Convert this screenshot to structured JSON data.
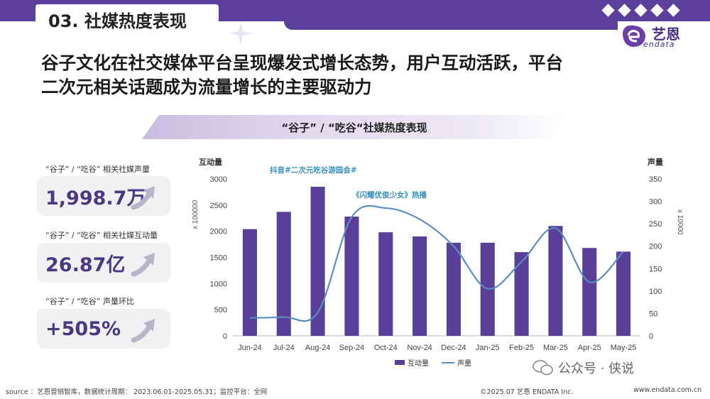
{
  "header": {
    "section_title": "03. 社媒热度表现",
    "headline_line1": "谷子文化在社交媒体平台呈现爆发式增长态势，用户互动活跃，平台",
    "headline_line2": "二次元相关话题成为流量增长的主要驱动力",
    "subtitle": "“谷子” / “吃谷“社媒热度表现"
  },
  "logo": {
    "name": "艺恩",
    "sub": "endata"
  },
  "kpis": [
    {
      "label": "“谷子” / “吃谷” 相关社媒声量",
      "value": "1,998.7万"
    },
    {
      "label": "“谷子” / “吃谷” 相关社媒互动量",
      "value": "26.87亿"
    },
    {
      "label": "“谷子” / “吃谷” 声量环比",
      "value": "+505%"
    }
  ],
  "chart_data": {
    "type": "bar+line",
    "categories": [
      "Jun-24",
      "Jul-24",
      "Aug-24",
      "Sep-24",
      "Oct-24",
      "Nov-24",
      "Dec-24",
      "Jan-25",
      "Feb-25",
      "Mar-25",
      "Apr-25",
      "May-25"
    ],
    "series": [
      {
        "name": "互动量",
        "type": "bar",
        "axis": "left",
        "values": [
          2040,
          2370,
          2850,
          2280,
          1980,
          1900,
          1780,
          1780,
          1600,
          2100,
          1680,
          1610
        ]
      },
      {
        "name": "声量",
        "type": "line",
        "axis": "right",
        "values": [
          40,
          42,
          52,
          265,
          285,
          260,
          200,
          105,
          165,
          240,
          120,
          188
        ]
      }
    ],
    "left_axis": {
      "title": "互动量",
      "unit": "x 100000",
      "range": [
        0,
        3000
      ],
      "ticks": [
        0,
        500,
        1000,
        1500,
        2000,
        2500,
        3000
      ]
    },
    "right_axis": {
      "title": "声量",
      "unit": "x 10000",
      "range": [
        0,
        350
      ],
      "ticks": [
        0,
        50,
        100,
        150,
        200,
        250,
        300,
        350
      ]
    },
    "annotations": [
      {
        "text": "抖音#二次元吃谷游园会#",
        "near": "Sep-24"
      },
      {
        "text": "《闪耀优俊少女》热播",
        "near": "Oct-24"
      }
    ],
    "legend_position": "bottom",
    "colors": {
      "bar": "#5a3f99",
      "line": "#5b8cc2"
    }
  },
  "footer": {
    "source": "source ：艺恩营销智库，数据统计周期： 2023.06.01-2025.05.31；监控平台：全网",
    "copyright": "©2025.07  艺恩 ENDATA Inc.",
    "website": "www.endata.com.cn",
    "wechat": "公众号 · 侠说"
  }
}
